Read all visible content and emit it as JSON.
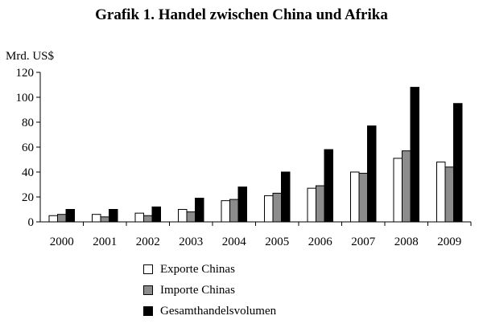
{
  "chart_data": {
    "type": "bar",
    "title": "Grafik 1. Handel zwischen China und Afrika",
    "ylabel": "Mrd. US$",
    "xlabel": "",
    "ylim": [
      0,
      120
    ],
    "yticks": [
      0,
      20,
      40,
      60,
      80,
      100,
      120
    ],
    "grid": false,
    "legend_position": "bottom",
    "categories": [
      "2000",
      "2001",
      "2002",
      "2003",
      "2004",
      "2005",
      "2006",
      "2007",
      "2008",
      "2009"
    ],
    "series": [
      {
        "name": "Exporte Chinas",
        "color": "#ffffff",
        "values": [
          5,
          6,
          7,
          10,
          17,
          21,
          27,
          40,
          51,
          48
        ]
      },
      {
        "name": "Importe Chinas",
        "color": "#8c8c8c",
        "values": [
          6,
          4,
          5,
          8,
          18,
          23,
          29,
          39,
          57,
          44
        ]
      },
      {
        "name": "Gesamthandelsvolumen",
        "color": "#000000",
        "values": [
          10,
          10,
          12,
          19,
          28,
          40,
          58,
          77,
          108,
          95
        ]
      }
    ]
  }
}
